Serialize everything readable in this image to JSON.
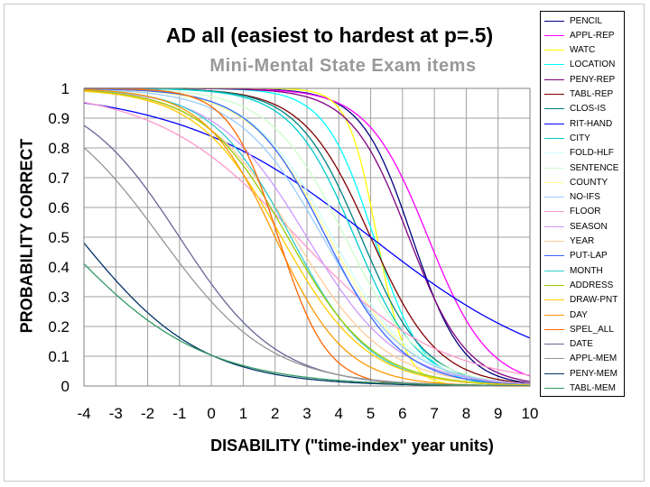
{
  "chart_data": {
    "type": "line",
    "title": "AD all (easiest to hardest at p=.5)",
    "subtitle": "Mini-Mental State Exam items",
    "xlabel": "DISABILITY (\"time-index\" year units)",
    "ylabel": "PROBABILITY CORRECT",
    "xlim": [
      -4,
      10
    ],
    "ylim": [
      0,
      1
    ],
    "x_ticks": [
      "-4",
      "-3",
      "-2",
      "-1",
      "0",
      "1",
      "2",
      "3",
      "4",
      "5",
      "6",
      "7",
      "8",
      "9",
      "10"
    ],
    "y_ticks": [
      "0",
      "0.1",
      "0.2",
      "0.3",
      "0.4",
      "0.5",
      "0.6",
      "0.7",
      "0.8",
      "0.9",
      "1"
    ],
    "grid": true,
    "legend_position": "right",
    "series": [
      {
        "name": "PENCIL",
        "color": "#000080",
        "x50": 6.3,
        "slope": 1.25
      },
      {
        "name": "APPL-REP",
        "color": "#ff00ff",
        "x50": 6.8,
        "slope": 1.05
      },
      {
        "name": "WATC",
        "color": "#ffff00",
        "x50": 5.2,
        "slope": 2.2
      },
      {
        "name": "LOCATION",
        "color": "#00ffff",
        "x50": 5.1,
        "slope": 1.3
      },
      {
        "name": "PENY-REP",
        "color": "#800080",
        "x50": 6.2,
        "slope": 1.1
      },
      {
        "name": "TABL-REP",
        "color": "#800000",
        "x50": 5.0,
        "slope": 0.95
      },
      {
        "name": "CLOS-IS",
        "color": "#008080",
        "x50": 4.7,
        "slope": 1.0
      },
      {
        "name": "RIT-HAND",
        "color": "#0000ff",
        "x50": 5.0,
        "slope": 0.33
      },
      {
        "name": "CITY",
        "color": "#00cccc",
        "x50": 4.5,
        "slope": 1.0
      },
      {
        "name": "FOLD-HLF",
        "color": "#ccffff",
        "x50": 3.8,
        "slope": 0.8
      },
      {
        "name": "SENTENCE",
        "color": "#ccffcc",
        "x50": 4.2,
        "slope": 0.85
      },
      {
        "name": "COUNTY",
        "color": "#ffff99",
        "x50": 3.7,
        "slope": 0.8
      },
      {
        "name": "NO-IFS",
        "color": "#99ccff",
        "x50": 3.5,
        "slope": 0.75
      },
      {
        "name": "FLOOR",
        "color": "#ff99cc",
        "x50": 2.7,
        "slope": 0.45
      },
      {
        "name": "SEASON",
        "color": "#cc99ff",
        "x50": 3.0,
        "slope": 0.7
      },
      {
        "name": "YEAR",
        "color": "#ffcc99",
        "x50": 2.6,
        "slope": 0.7
      },
      {
        "name": "PUT-LAP",
        "color": "#3366ff",
        "x50": 3.6,
        "slope": 0.85
      },
      {
        "name": "MONTH",
        "color": "#33cccc",
        "x50": 2.5,
        "slope": 0.8
      },
      {
        "name": "ADDRESS",
        "color": "#99cc00",
        "x50": 2.4,
        "slope": 0.75
      },
      {
        "name": "DRAW-PNT",
        "color": "#ffcc00",
        "x50": 2.2,
        "slope": 0.75
      },
      {
        "name": "DAY",
        "color": "#ff9900",
        "x50": 2.0,
        "slope": 0.9
      },
      {
        "name": "SPEL_ALL",
        "color": "#ff6600",
        "x50": 2.1,
        "slope": 1.3
      },
      {
        "name": "DATE",
        "color": "#666699",
        "x50": -1.0,
        "slope": 0.65
      },
      {
        "name": "APPL-MEM",
        "color": "#969696",
        "x50": -1.6,
        "slope": 0.58
      },
      {
        "name": "PENY-MEM",
        "color": "#003366",
        "x50": -4.15,
        "slope": 0.52
      },
      {
        "name": "TABL-MEM",
        "color": "#339966",
        "x50": -4.8,
        "slope": 0.45
      }
    ]
  }
}
